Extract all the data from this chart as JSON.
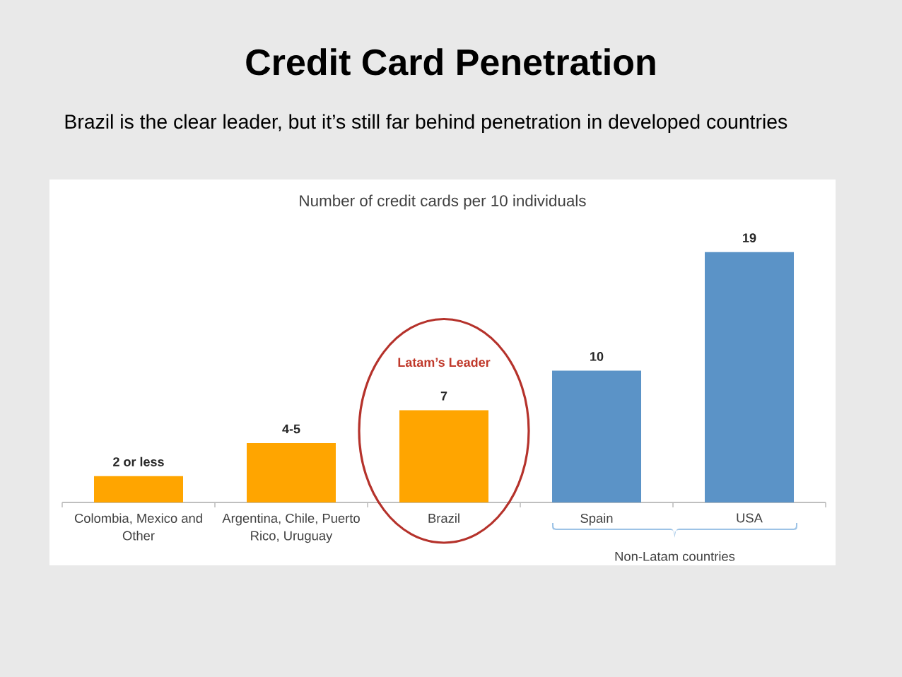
{
  "chart_data": {
    "type": "bar",
    "title": "Credit Card Penetration",
    "subtitle": "Brazil is the clear leader, but it’s still far behind penetration in developed countries",
    "categories": [
      "Colombia, Mexico and Other",
      "Argentina, Chile, Puerto Rico, Uruguay",
      "Brazil",
      "Spain",
      "USA"
    ],
    "values": [
      2,
      4.5,
      7,
      10,
      19
    ],
    "value_labels": [
      "2 or less",
      "4-5",
      "7",
      "10",
      "19"
    ],
    "colors": [
      "#ffa500",
      "#ffa500",
      "#ffa500",
      "#5b93c7",
      "#5b93c7"
    ],
    "annotations": [
      "Number of credit cards per 10 individuals",
      "Latam’s Leader",
      "Non-Latam countries"
    ]
  }
}
